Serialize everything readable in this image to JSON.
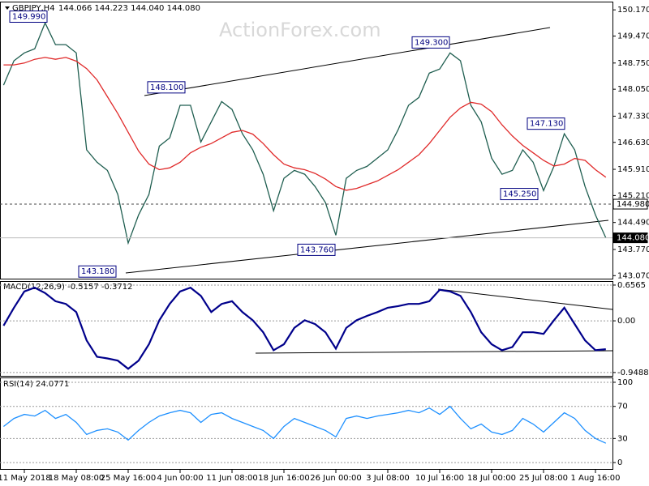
{
  "chart_data": [
    {
      "type": "line",
      "title": "GBPJPY,H4",
      "subtitle": "144.066 144.223 144.040 144.080",
      "watermark": "ActionForex.com",
      "ylim": [
        142.99,
        150.39
      ],
      "yticks": [
        {
          "value": 150.17,
          "label": "150.170"
        },
        {
          "value": 149.47,
          "label": "149.470"
        },
        {
          "value": 148.75,
          "label": "148.750"
        },
        {
          "value": 148.05,
          "label": "148.050"
        },
        {
          "value": 147.33,
          "label": "147.330"
        },
        {
          "value": 146.63,
          "label": "146.630"
        },
        {
          "value": 145.91,
          "label": "145.910"
        },
        {
          "value": 145.21,
          "label": "145.210"
        },
        {
          "value": 144.49,
          "label": "144.490"
        },
        {
          "value": 143.77,
          "label": "143.770"
        },
        {
          "value": 143.07,
          "label": "143.070"
        }
      ],
      "levels": [
        {
          "value": 144.98,
          "label": "144.980"
        },
        {
          "value": 144.08,
          "label": "144.080"
        }
      ],
      "annotations": [
        {
          "value": 149.99,
          "label": "149.990"
        },
        {
          "value": 148.1,
          "label": "148.100"
        },
        {
          "value": 149.3,
          "label": "149.300"
        },
        {
          "value": 147.13,
          "label": "147.130"
        },
        {
          "value": 145.25,
          "label": "145.250"
        },
        {
          "value": 143.18,
          "label": "143.180"
        },
        {
          "value": 143.76,
          "label": "143.760"
        }
      ],
      "series": [
        {
          "color": "#1f5e50",
          "values": [
            148.16,
            148.81,
            149.02,
            149.13,
            149.82,
            149.24,
            149.24,
            149.02,
            146.43,
            146.1,
            145.88,
            145.24,
            143.94,
            144.69,
            145.24,
            146.53,
            146.75,
            147.62,
            147.62,
            146.64,
            147.18,
            147.72,
            147.51,
            146.86,
            146.43,
            145.78,
            144.8,
            145.67,
            145.88,
            145.78,
            145.45,
            145.02,
            144.15,
            145.67,
            145.88,
            145.99,
            146.21,
            146.43,
            146.97,
            147.62,
            147.83,
            148.48,
            148.59,
            149.02,
            148.81,
            147.62,
            147.18,
            146.21,
            145.78,
            145.88,
            146.43,
            146.1,
            145.34,
            145.99,
            146.86,
            146.43,
            145.45,
            144.69,
            144.08
          ]
        },
        {
          "color": "#e02a2a",
          "values": [
            148.7,
            148.7,
            148.75,
            148.85,
            148.9,
            148.85,
            148.9,
            148.8,
            148.6,
            148.3,
            147.85,
            147.4,
            146.9,
            146.4,
            146.05,
            145.9,
            145.95,
            146.1,
            146.35,
            146.5,
            146.6,
            146.75,
            146.9,
            146.95,
            146.85,
            146.6,
            146.3,
            146.05,
            145.95,
            145.9,
            145.8,
            145.65,
            145.45,
            145.35,
            145.4,
            145.5,
            145.6,
            145.75,
            145.9,
            146.1,
            146.3,
            146.6,
            146.95,
            147.3,
            147.55,
            147.7,
            147.65,
            147.45,
            147.1,
            146.8,
            146.55,
            146.35,
            146.15,
            146.0,
            146.05,
            146.2,
            146.15,
            145.9,
            145.7
          ]
        }
      ]
    },
    {
      "type": "line",
      "title": "MACD(12,26,9) -0.5157 -0.3712",
      "ylim": [
        -1.01,
        0.73
      ],
      "yticks": [
        {
          "value": 0.6565,
          "label": "0.6565"
        },
        {
          "value": 0,
          "label": "0.00"
        },
        {
          "value": -0.9488,
          "label": "-0.9488"
        }
      ],
      "series": [
        {
          "color": "#00008b",
          "values": [
            -0.09,
            0.24,
            0.54,
            0.61,
            0.51,
            0.36,
            0.31,
            0.16,
            -0.36,
            -0.66,
            -0.69,
            -0.73,
            -0.88,
            -0.73,
            -0.43,
            0.01,
            0.31,
            0.54,
            0.61,
            0.46,
            0.16,
            0.31,
            0.36,
            0.16,
            0.01,
            -0.21,
            -0.54,
            -0.43,
            -0.13,
            0.01,
            -0.06,
            -0.21,
            -0.51,
            -0.13,
            0.01,
            0.09,
            0.16,
            0.24,
            0.27,
            0.31,
            0.31,
            0.36,
            0.57,
            0.54,
            0.46,
            0.16,
            -0.21,
            -0.43,
            -0.54,
            -0.48,
            -0.21,
            -0.21,
            -0.24,
            0.01,
            0.24,
            -0.06,
            -0.36,
            -0.54,
            -0.52
          ]
        }
      ]
    },
    {
      "type": "line",
      "title": "RSI(14) 24.0771",
      "ylim": [
        -9,
        105
      ],
      "yticks": [
        100,
        70,
        30,
        0
      ],
      "categories": [
        null,
        null,
        "11 May 2018",
        null,
        null,
        null,
        null,
        "18 May 08:00",
        null,
        null,
        null,
        null,
        "25 May 16:00",
        null,
        null,
        null,
        null,
        "4 Jun 00:00",
        null,
        null,
        null,
        null,
        "11 Jun 08:00",
        null,
        null,
        null,
        null,
        "18 Jun 16:00",
        null,
        null,
        null,
        null,
        "26 Jun 00:00",
        null,
        null,
        null,
        null,
        "3 Jul 08:00",
        null,
        null,
        null,
        null,
        "10 Jul 16:00",
        null,
        null,
        null,
        null,
        "18 Jul 00:00",
        null,
        null,
        null,
        null,
        "25 Jul 08:00",
        null,
        null,
        null,
        null,
        "1 Aug 16:00",
        null
      ],
      "series": [
        {
          "color": "#1e90ff",
          "values": [
            45,
            55,
            60,
            58,
            65,
            55,
            60,
            50,
            35,
            40,
            42,
            38,
            28,
            40,
            50,
            58,
            62,
            65,
            62,
            50,
            60,
            62,
            55,
            50,
            45,
            40,
            30,
            45,
            55,
            50,
            45,
            40,
            32,
            55,
            58,
            55,
            58,
            60,
            62,
            65,
            62,
            68,
            60,
            70,
            55,
            42,
            48,
            38,
            35,
            40,
            55,
            48,
            38,
            50,
            62,
            55,
            40,
            30,
            24.08
          ]
        }
      ]
    }
  ]
}
